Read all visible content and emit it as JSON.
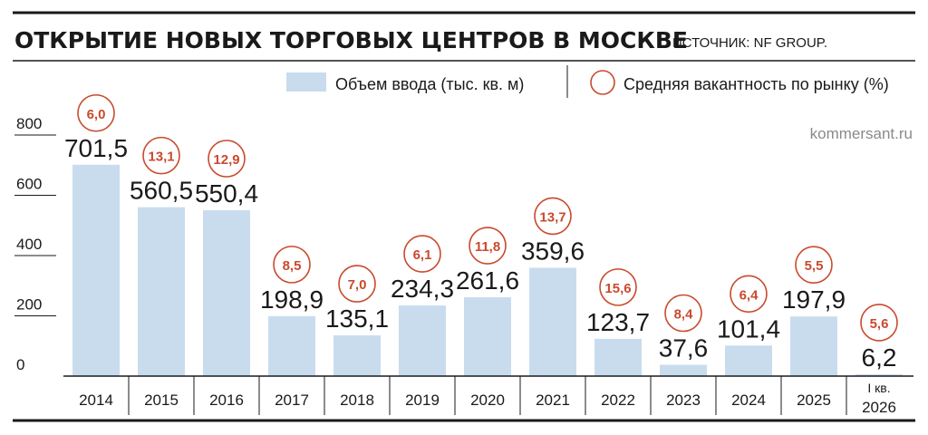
{
  "title": "ОТКРЫТИЕ НОВЫХ ТОРГОВЫХ ЦЕНТРОВ В МОСКВЕ",
  "source": "ИСТОЧНИК: NF GROUP.",
  "credit": "kommersant.ru",
  "colors": {
    "bar": "#c9dcee",
    "vacancy": "#c94a2e",
    "text": "#1a1a1a",
    "credit": "#8a8a8a"
  },
  "chart_data": {
    "type": "bar",
    "categories": [
      "2014",
      "2015",
      "2016",
      "2017",
      "2018",
      "2019",
      "2020",
      "2021",
      "2022",
      "2023",
      "2024",
      "2025",
      "I кв. 2026"
    ],
    "series": [
      {
        "name": "Объем ввода (тыс. кв. м)",
        "values": [
          701.5,
          560.5,
          550.4,
          198.9,
          135.1,
          234.3,
          261.6,
          359.6,
          123.7,
          37.6,
          101.4,
          197.9,
          6.2
        ]
      },
      {
        "name": "Средняя вакантность по рынку (%)",
        "values": [
          6.0,
          13.1,
          12.9,
          8.5,
          7.0,
          6.1,
          11.8,
          13.7,
          15.6,
          8.4,
          6.4,
          5.5,
          5.6
        ]
      }
    ],
    "value_labels": [
      "701,5",
      "560,5",
      "550,4",
      "198,9",
      "135,1",
      "234,3",
      "261,6",
      "359,6",
      "123,7",
      "37,6",
      "101,4",
      "197,9",
      "6,2"
    ],
    "vacancy_labels": [
      "6,0",
      "13,1",
      "12,9",
      "8,5",
      "7,0",
      "6,1",
      "11,8",
      "13,7",
      "15,6",
      "8,4",
      "6,4",
      "5,5",
      "5,6"
    ],
    "x_tick_labels": [
      [
        "2014"
      ],
      [
        "2015"
      ],
      [
        "2016"
      ],
      [
        "2017"
      ],
      [
        "2018"
      ],
      [
        "2019"
      ],
      [
        "2020"
      ],
      [
        "2021"
      ],
      [
        "2022"
      ],
      [
        "2023"
      ],
      [
        "2024"
      ],
      [
        "2025"
      ],
      [
        "I кв.",
        "2026"
      ]
    ],
    "y_ticks": [
      "0",
      "200",
      "400",
      "600",
      "800"
    ],
    "ylim": [
      0,
      800
    ],
    "legend": [
      "Объем ввода (тыс. кв. м)",
      "Средняя вакантность по рынку (%)"
    ],
    "legend_position": "top-right",
    "grid": false
  }
}
